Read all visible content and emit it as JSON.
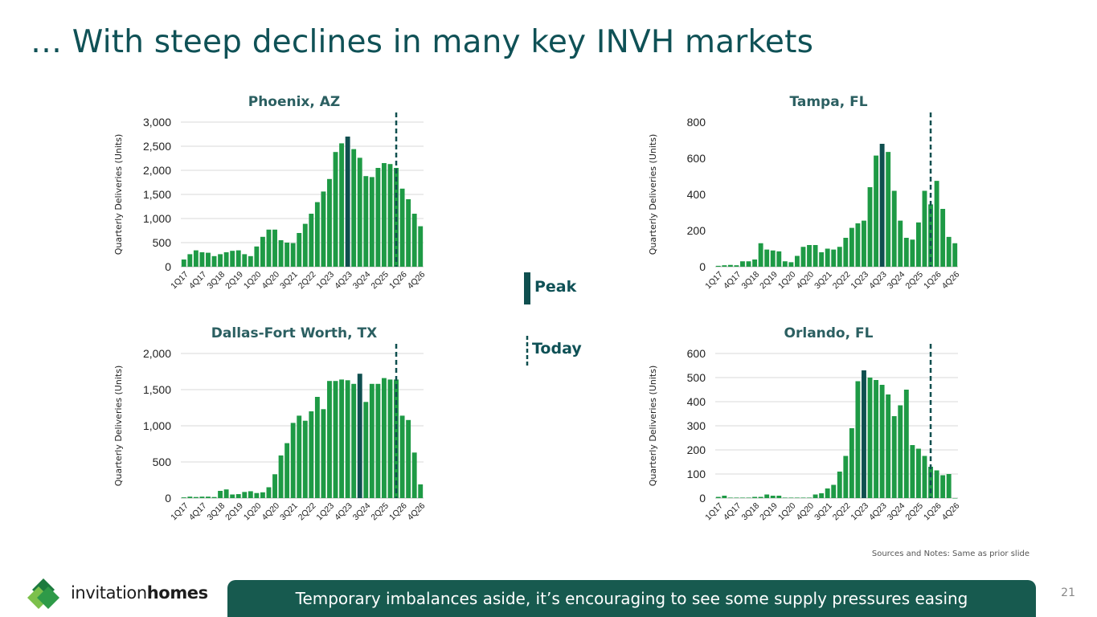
{
  "title": "… With steep declines in many key INVH markets",
  "colors": {
    "bar": "#1e9a45",
    "peak": "#0f4f4f",
    "today": "#0f4f4f",
    "title": "#0f5156",
    "banner": "#175a4f"
  },
  "legend": {
    "peak_label": "Peak",
    "today_label": "Today"
  },
  "note": "Sources and Notes: Same as prior slide",
  "brand": {
    "part1": "invitation",
    "part2": "homes"
  },
  "banner": "Temporary imbalances aside, it’s encouraging to see some supply pressures easing",
  "page_number": "21",
  "chart_data": [
    {
      "type": "bar",
      "title": "Phoenix, AZ",
      "ylabel": "Quarterly Deliveries (Units)",
      "xlabel": "",
      "ylim": [
        0,
        3000
      ],
      "yticks": [
        0,
        500,
        1000,
        1500,
        2000,
        2500,
        3000
      ],
      "ytick_labels": [
        "0",
        "500",
        "1,000",
        "1,500",
        "2,000",
        "2,500",
        "3,000"
      ],
      "grid": true,
      "categories": [
        "1Q17",
        "2Q17",
        "3Q17",
        "4Q17",
        "1Q18",
        "2Q18",
        "3Q18",
        "4Q18",
        "1Q19",
        "2Q19",
        "3Q19",
        "4Q19",
        "1Q20",
        "2Q20",
        "3Q20",
        "4Q20",
        "1Q21",
        "2Q21",
        "3Q21",
        "4Q21",
        "1Q22",
        "2Q22",
        "3Q22",
        "4Q22",
        "1Q23",
        "2Q23",
        "3Q23",
        "4Q23",
        "1Q24",
        "2Q24",
        "3Q24",
        "4Q24",
        "1Q25",
        "2Q25",
        "3Q25",
        "4Q25",
        "1Q26",
        "2Q26",
        "3Q26",
        "4Q26"
      ],
      "xtick_labels": [
        "1Q17",
        "4Q17",
        "3Q18",
        "2Q19",
        "1Q20",
        "4Q20",
        "3Q21",
        "2Q22",
        "1Q23",
        "4Q23",
        "3Q24",
        "2Q25",
        "1Q26",
        "4Q26"
      ],
      "values": [
        150,
        260,
        340,
        300,
        290,
        220,
        260,
        300,
        330,
        340,
        260,
        220,
        420,
        620,
        770,
        770,
        550,
        500,
        490,
        700,
        890,
        1100,
        1340,
        1560,
        1820,
        2380,
        2560,
        2700,
        2440,
        2260,
        1880,
        1860,
        2050,
        2150,
        2130,
        2050,
        1620,
        1400,
        1100,
        840
      ],
      "peak_index": 27,
      "today_index": 35,
      "legend": [
        "Peak",
        "Today"
      ]
    },
    {
      "type": "bar",
      "title": "Tampa, FL",
      "ylabel": "Quarterly Deliveries (Units)",
      "xlabel": "",
      "ylim": [
        0,
        800
      ],
      "yticks": [
        0,
        200,
        400,
        600,
        800
      ],
      "ytick_labels": [
        "0",
        "200",
        "400",
        "600",
        "800"
      ],
      "grid": false,
      "categories": [
        "1Q17",
        "2Q17",
        "3Q17",
        "4Q17",
        "1Q18",
        "2Q18",
        "3Q18",
        "4Q18",
        "1Q19",
        "2Q19",
        "3Q19",
        "4Q19",
        "1Q20",
        "2Q20",
        "3Q20",
        "4Q20",
        "1Q21",
        "2Q21",
        "3Q21",
        "4Q21",
        "1Q22",
        "2Q22",
        "3Q22",
        "4Q22",
        "1Q23",
        "2Q23",
        "3Q23",
        "4Q23",
        "1Q24",
        "2Q24",
        "3Q24",
        "4Q24",
        "1Q25",
        "2Q25",
        "3Q25",
        "4Q25",
        "1Q26",
        "2Q26",
        "3Q26",
        "4Q26"
      ],
      "xtick_labels": [
        "1Q17",
        "4Q17",
        "3Q18",
        "2Q19",
        "1Q20",
        "4Q20",
        "3Q21",
        "2Q22",
        "1Q23",
        "4Q23",
        "3Q24",
        "2Q25",
        "1Q26",
        "4Q26"
      ],
      "values": [
        5,
        8,
        10,
        8,
        30,
        30,
        40,
        130,
        95,
        90,
        85,
        30,
        25,
        60,
        110,
        120,
        120,
        80,
        100,
        95,
        110,
        160,
        215,
        240,
        255,
        440,
        615,
        680,
        635,
        420,
        255,
        160,
        150,
        245,
        420,
        345,
        475,
        320,
        165,
        130
      ],
      "peak_index": 27,
      "today_index": 35
    },
    {
      "type": "bar",
      "title": "Dallas-Fort Worth, TX",
      "ylabel": "Quarterly Deliveries (Units)",
      "xlabel": "",
      "ylim": [
        0,
        2000
      ],
      "yticks": [
        0,
        500,
        1000,
        1500,
        2000
      ],
      "ytick_labels": [
        "0",
        "500",
        "1,000",
        "1,500",
        "2,000"
      ],
      "grid": true,
      "categories": [
        "1Q17",
        "2Q17",
        "3Q17",
        "4Q17",
        "1Q18",
        "2Q18",
        "3Q18",
        "4Q18",
        "1Q19",
        "2Q19",
        "3Q19",
        "4Q19",
        "1Q20",
        "2Q20",
        "3Q20",
        "4Q20",
        "1Q21",
        "2Q21",
        "3Q21",
        "4Q21",
        "1Q22",
        "2Q22",
        "3Q22",
        "4Q22",
        "1Q23",
        "2Q23",
        "3Q23",
        "4Q23",
        "1Q24",
        "2Q24",
        "3Q24",
        "4Q24",
        "1Q25",
        "2Q25",
        "3Q25",
        "4Q25",
        "1Q26",
        "2Q26",
        "3Q26",
        "4Q26"
      ],
      "xtick_labels": [
        "1Q17",
        "4Q17",
        "3Q18",
        "2Q19",
        "1Q20",
        "4Q20",
        "3Q21",
        "2Q22",
        "1Q23",
        "4Q23",
        "3Q24",
        "2Q25",
        "1Q26",
        "4Q26"
      ],
      "values": [
        10,
        20,
        15,
        20,
        20,
        15,
        100,
        120,
        50,
        55,
        85,
        95,
        70,
        80,
        150,
        330,
        590,
        760,
        1040,
        1140,
        1070,
        1200,
        1400,
        1230,
        1620,
        1620,
        1640,
        1630,
        1580,
        1720,
        1330,
        1580,
        1580,
        1660,
        1640,
        1640,
        1140,
        1080,
        630,
        190
      ],
      "peak_index": 29,
      "today_index": 35
    },
    {
      "type": "bar",
      "title": "Orlando, FL",
      "ylabel": "Quarterly Deliveries (Units)",
      "xlabel": "",
      "ylim": [
        0,
        600
      ],
      "yticks": [
        0,
        100,
        200,
        300,
        400,
        500,
        600
      ],
      "ytick_labels": [
        "0",
        "100",
        "200",
        "300",
        "400",
        "500",
        "600"
      ],
      "grid": true,
      "categories": [
        "1Q17",
        "2Q17",
        "3Q17",
        "4Q17",
        "1Q18",
        "2Q18",
        "3Q18",
        "4Q18",
        "1Q19",
        "2Q19",
        "3Q19",
        "4Q19",
        "1Q20",
        "2Q20",
        "3Q20",
        "4Q20",
        "1Q21",
        "2Q21",
        "3Q21",
        "4Q21",
        "1Q22",
        "2Q22",
        "3Q22",
        "4Q22",
        "1Q23",
        "2Q23",
        "3Q23",
        "4Q23",
        "1Q24",
        "2Q24",
        "3Q24",
        "4Q24",
        "1Q25",
        "2Q25",
        "3Q25",
        "4Q25",
        "1Q26",
        "2Q26",
        "3Q26",
        "4Q26"
      ],
      "xtick_labels": [
        "1Q17",
        "4Q17",
        "3Q18",
        "2Q19",
        "1Q20",
        "4Q20",
        "3Q21",
        "2Q22",
        "1Q23",
        "4Q23",
        "3Q24",
        "2Q25",
        "1Q26",
        "4Q26"
      ],
      "values": [
        5,
        10,
        2,
        2,
        2,
        2,
        5,
        5,
        15,
        10,
        10,
        2,
        2,
        2,
        2,
        2,
        15,
        20,
        40,
        55,
        110,
        175,
        290,
        485,
        530,
        500,
        490,
        470,
        430,
        340,
        385,
        450,
        220,
        205,
        175,
        130,
        115,
        95,
        100,
        0
      ],
      "peak_index": 24,
      "today_index": 35
    }
  ]
}
